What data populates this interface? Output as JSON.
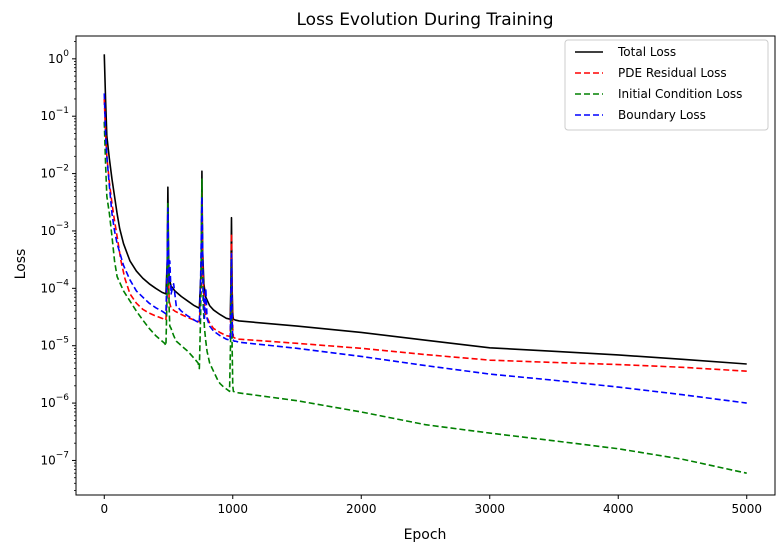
{
  "chart_data": {
    "type": "line",
    "title": "Loss Evolution During Training",
    "xlabel": "Epoch",
    "ylabel": "Loss",
    "xscale": "linear",
    "yscale": "log",
    "xlim": [
      -220,
      5220
    ],
    "ylim": [
      2.5e-08,
      2.5
    ],
    "xticks": [
      0,
      1000,
      2000,
      3000,
      4000,
      5000
    ],
    "xtick_labels": [
      "0",
      "1000",
      "2000",
      "3000",
      "4000",
      "5000"
    ],
    "yticks": [
      1e-07,
      1e-06,
      1e-05,
      0.0001,
      0.001,
      0.01,
      0.1,
      1
    ],
    "ytick_labels": [
      [
        "10",
        "−7"
      ],
      [
        "10",
        "−6"
      ],
      [
        "10",
        "−5"
      ],
      [
        "10",
        "−4"
      ],
      [
        "10",
        "−3"
      ],
      [
        "10",
        "−2"
      ],
      [
        "10",
        "−1"
      ],
      [
        "10",
        "0"
      ]
    ],
    "grid": false,
    "legend_position": "top-right",
    "series": [
      {
        "name": "Total Loss",
        "color": "#000000",
        "dash": "solid",
        "x": [
          0,
          10,
          20,
          40,
          60,
          80,
          100,
          120,
          150,
          200,
          250,
          300,
          350,
          400,
          450,
          480,
          490,
          495,
          500,
          505,
          520,
          550,
          600,
          650,
          700,
          740,
          755,
          760,
          765,
          775,
          790,
          820,
          850,
          900,
          950,
          980,
          985,
          990,
          995,
          1000,
          1005,
          1020,
          1050,
          1500,
          2000,
          2500,
          3000,
          3500,
          4000,
          4500,
          5000
        ],
        "y": [
          1.2,
          0.2,
          0.045,
          0.018,
          0.008,
          0.004,
          0.002,
          0.0011,
          0.0006,
          0.0003,
          0.0002,
          0.00015,
          0.00012,
          0.0001,
          8.5e-05,
          8e-05,
          0.0003,
          0.0058,
          0.0005,
          0.00015,
          0.00011,
          9e-05,
          7.2e-05,
          6e-05,
          5e-05,
          4.5e-05,
          0.00025,
          0.011,
          0.0005,
          0.00012,
          7e-05,
          5e-05,
          4.2e-05,
          3.5e-05,
          3e-05,
          2.9e-05,
          0.0001,
          0.0017,
          0.0001,
          3.5e-05,
          2.9e-05,
          2.8e-05,
          2.7e-05,
          2.2e-05,
          1.7e-05,
          1.25e-05,
          9.2e-06,
          8e-06,
          6.9e-06,
          5.8e-06,
          4.8e-06
        ]
      },
      {
        "name": "PDE Residual Loss",
        "color": "#ff0000",
        "dash": "dashed",
        "x": [
          0,
          10,
          20,
          40,
          60,
          80,
          100,
          130,
          160,
          200,
          250,
          300,
          350,
          400,
          450,
          480,
          490,
          495,
          500,
          505,
          520,
          550,
          600,
          650,
          700,
          740,
          755,
          760,
          765,
          775,
          790,
          820,
          850,
          900,
          950,
          980,
          985,
          990,
          995,
          1000,
          1005,
          1020,
          1050,
          1500,
          2000,
          2500,
          3000,
          3500,
          4000,
          4500,
          5000
        ],
        "y": [
          0.2,
          0.05,
          0.02,
          0.007,
          0.003,
          0.0015,
          0.0008,
          0.0003,
          0.00015,
          8e-05,
          5.5e-05,
          4.3e-05,
          3.7e-05,
          3.3e-05,
          3e-05,
          2.8e-05,
          0.0001,
          0.0018,
          0.0002,
          6e-05,
          4.5e-05,
          4e-05,
          3.5e-05,
          3.1e-05,
          2.8e-05,
          2.6e-05,
          0.0001,
          0.005,
          0.0003,
          7e-05,
          3.5e-05,
          2.5e-05,
          2e-05,
          1.7e-05,
          1.5e-05,
          1.45e-05,
          6e-05,
          0.0009,
          8e-05,
          2e-05,
          1.4e-05,
          1.35e-05,
          1.3e-05,
          1.1e-05,
          9e-06,
          7e-06,
          5.6e-06,
          5.1e-06,
          4.7e-06,
          4.2e-06,
          3.6e-06
        ]
      },
      {
        "name": "Initial Condition Loss",
        "color": "#008000",
        "dash": "dashed",
        "x": [
          0,
          10,
          20,
          40,
          60,
          80,
          100,
          150,
          200,
          250,
          300,
          350,
          400,
          450,
          470,
          480,
          490,
          495,
          500,
          505,
          510,
          520,
          540,
          560,
          580,
          600,
          650,
          700,
          730,
          740,
          750,
          755,
          760,
          765,
          770,
          780,
          790,
          800,
          820,
          850,
          880,
          900,
          930,
          960,
          975,
          985,
          990,
          995,
          1000,
          1005,
          1020,
          1050,
          1100,
          1500,
          2000,
          2500,
          3000,
          3500,
          4000,
          4500,
          5000
        ],
        "y": [
          0.08,
          0.015,
          0.004,
          0.002,
          0.0008,
          0.0003,
          0.00016,
          9e-05,
          6e-05,
          4e-05,
          2.8e-05,
          2e-05,
          1.5e-05,
          1.2e-05,
          1.1e-05,
          1e-05,
          0.0001,
          0.003,
          0.0002,
          4.5e-05,
          2.2e-05,
          2e-05,
          1.5e-05,
          1.2e-05,
          1.1e-05,
          1e-05,
          8e-06,
          6e-06,
          5e-06,
          4e-06,
          3.5e-05,
          0.0005,
          0.008,
          0.0003,
          5e-05,
          2e-05,
          1.2e-05,
          8e-06,
          5e-06,
          3.6e-06,
          2.6e-06,
          2.2e-06,
          1.9e-06,
          1.7e-06,
          1.6e-06,
          2e-05,
          0.0003,
          1e-05,
          2e-06,
          1.6e-06,
          1.55e-06,
          1.5e-06,
          1.45e-06,
          1.1e-06,
          7e-07,
          4.2e-07,
          3e-07,
          2.2e-07,
          1.6e-07,
          1.05e-07,
          6e-08
        ]
      },
      {
        "name": "Boundary Loss",
        "color": "#0000ff",
        "dash": "dashed",
        "x": [
          0,
          10,
          20,
          40,
          60,
          80,
          100,
          150,
          200,
          250,
          300,
          350,
          400,
          450,
          480,
          490,
          495,
          500,
          505,
          510,
          520,
          540,
          560,
          600,
          650,
          700,
          740,
          750,
          755,
          760,
          765,
          770,
          780,
          790,
          800,
          820,
          850,
          900,
          950,
          980,
          985,
          990,
          995,
          1000,
          1010,
          1020,
          1050,
          1500,
          2000,
          2500,
          3000,
          3500,
          4000,
          4500,
          5000
        ],
        "y": [
          0.25,
          0.05,
          0.02,
          0.006,
          0.002,
          0.001,
          0.0006,
          0.00025,
          0.00014,
          9e-05,
          7e-05,
          5.5e-05,
          4.6e-05,
          4e-05,
          3.6e-05,
          0.0003,
          0.0025,
          0.0004,
          0.00012,
          0.0003,
          8e-05,
          0.00012,
          5e-05,
          4e-05,
          3.3e-05,
          2.8e-05,
          2.5e-05,
          0.00015,
          0.0008,
          0.004,
          0.0006,
          0.0001,
          3e-05,
          0.0001,
          3e-05,
          2.2e-05,
          1.8e-05,
          1.5e-05,
          1.3e-05,
          1.25e-05,
          5e-05,
          0.0004,
          3e-05,
          1.3e-05,
          1.2e-05,
          1.2e-05,
          1.15e-05,
          9e-06,
          6.5e-06,
          4.5e-06,
          3.2e-06,
          2.5e-06,
          1.9e-06,
          1.4e-06,
          1e-06
        ]
      }
    ]
  }
}
